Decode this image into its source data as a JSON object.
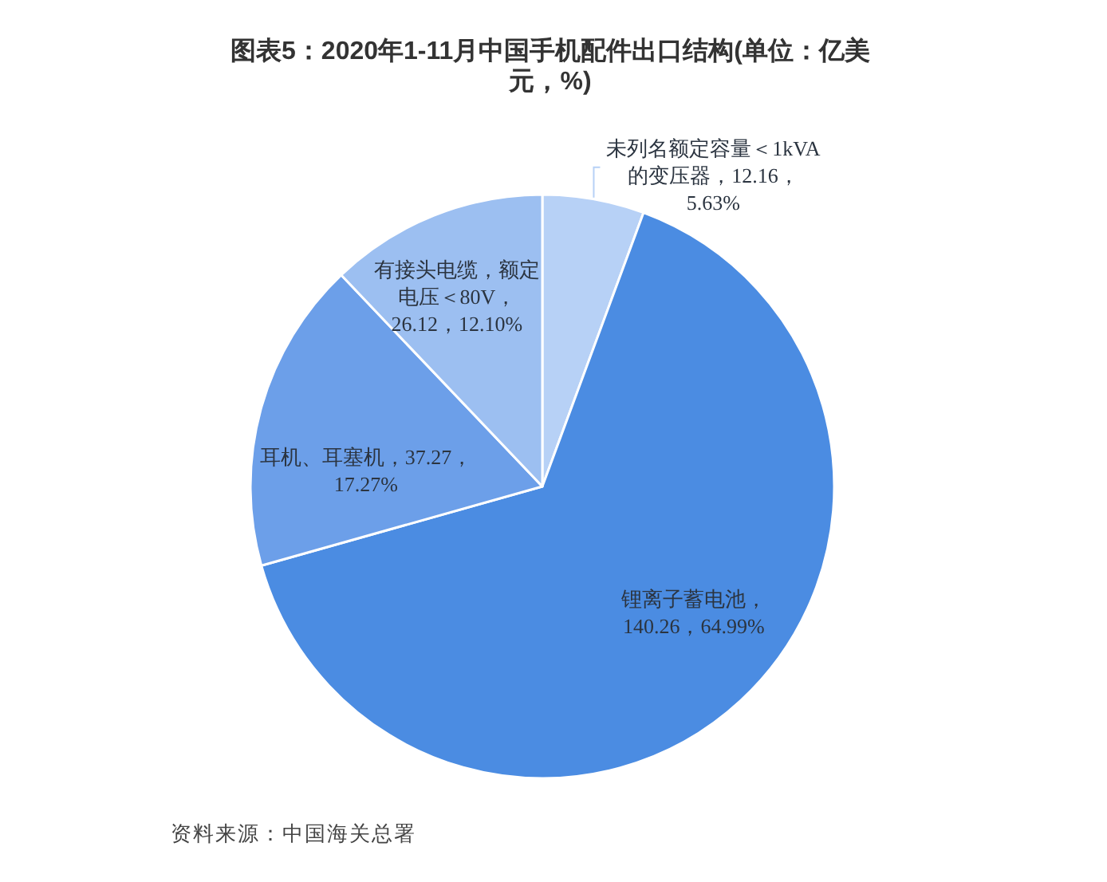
{
  "chart_data": {
    "type": "pie",
    "title": "图表5：2020年1-11月中国手机配件出口结构(单位：亿美元，%)",
    "categories": [
      "未列名额定容量＜1kVA的变压器",
      "锂离子蓄电池",
      "耳机、耳塞机",
      "有接头电缆，额定电压＜80V"
    ],
    "values": [
      12.16,
      140.26,
      37.27,
      26.12
    ],
    "value_labels": [
      "，12.16，5.63%",
      "，140.26，64.99%",
      "，37.27，17.27%",
      "，26.12，12.10%"
    ],
    "colors": [
      "#b7d1f6",
      "#4b8ce2",
      "#6c9fe9",
      "#9cbff1"
    ],
    "annotations": [
      "资料来源：中国海关总署"
    ]
  }
}
